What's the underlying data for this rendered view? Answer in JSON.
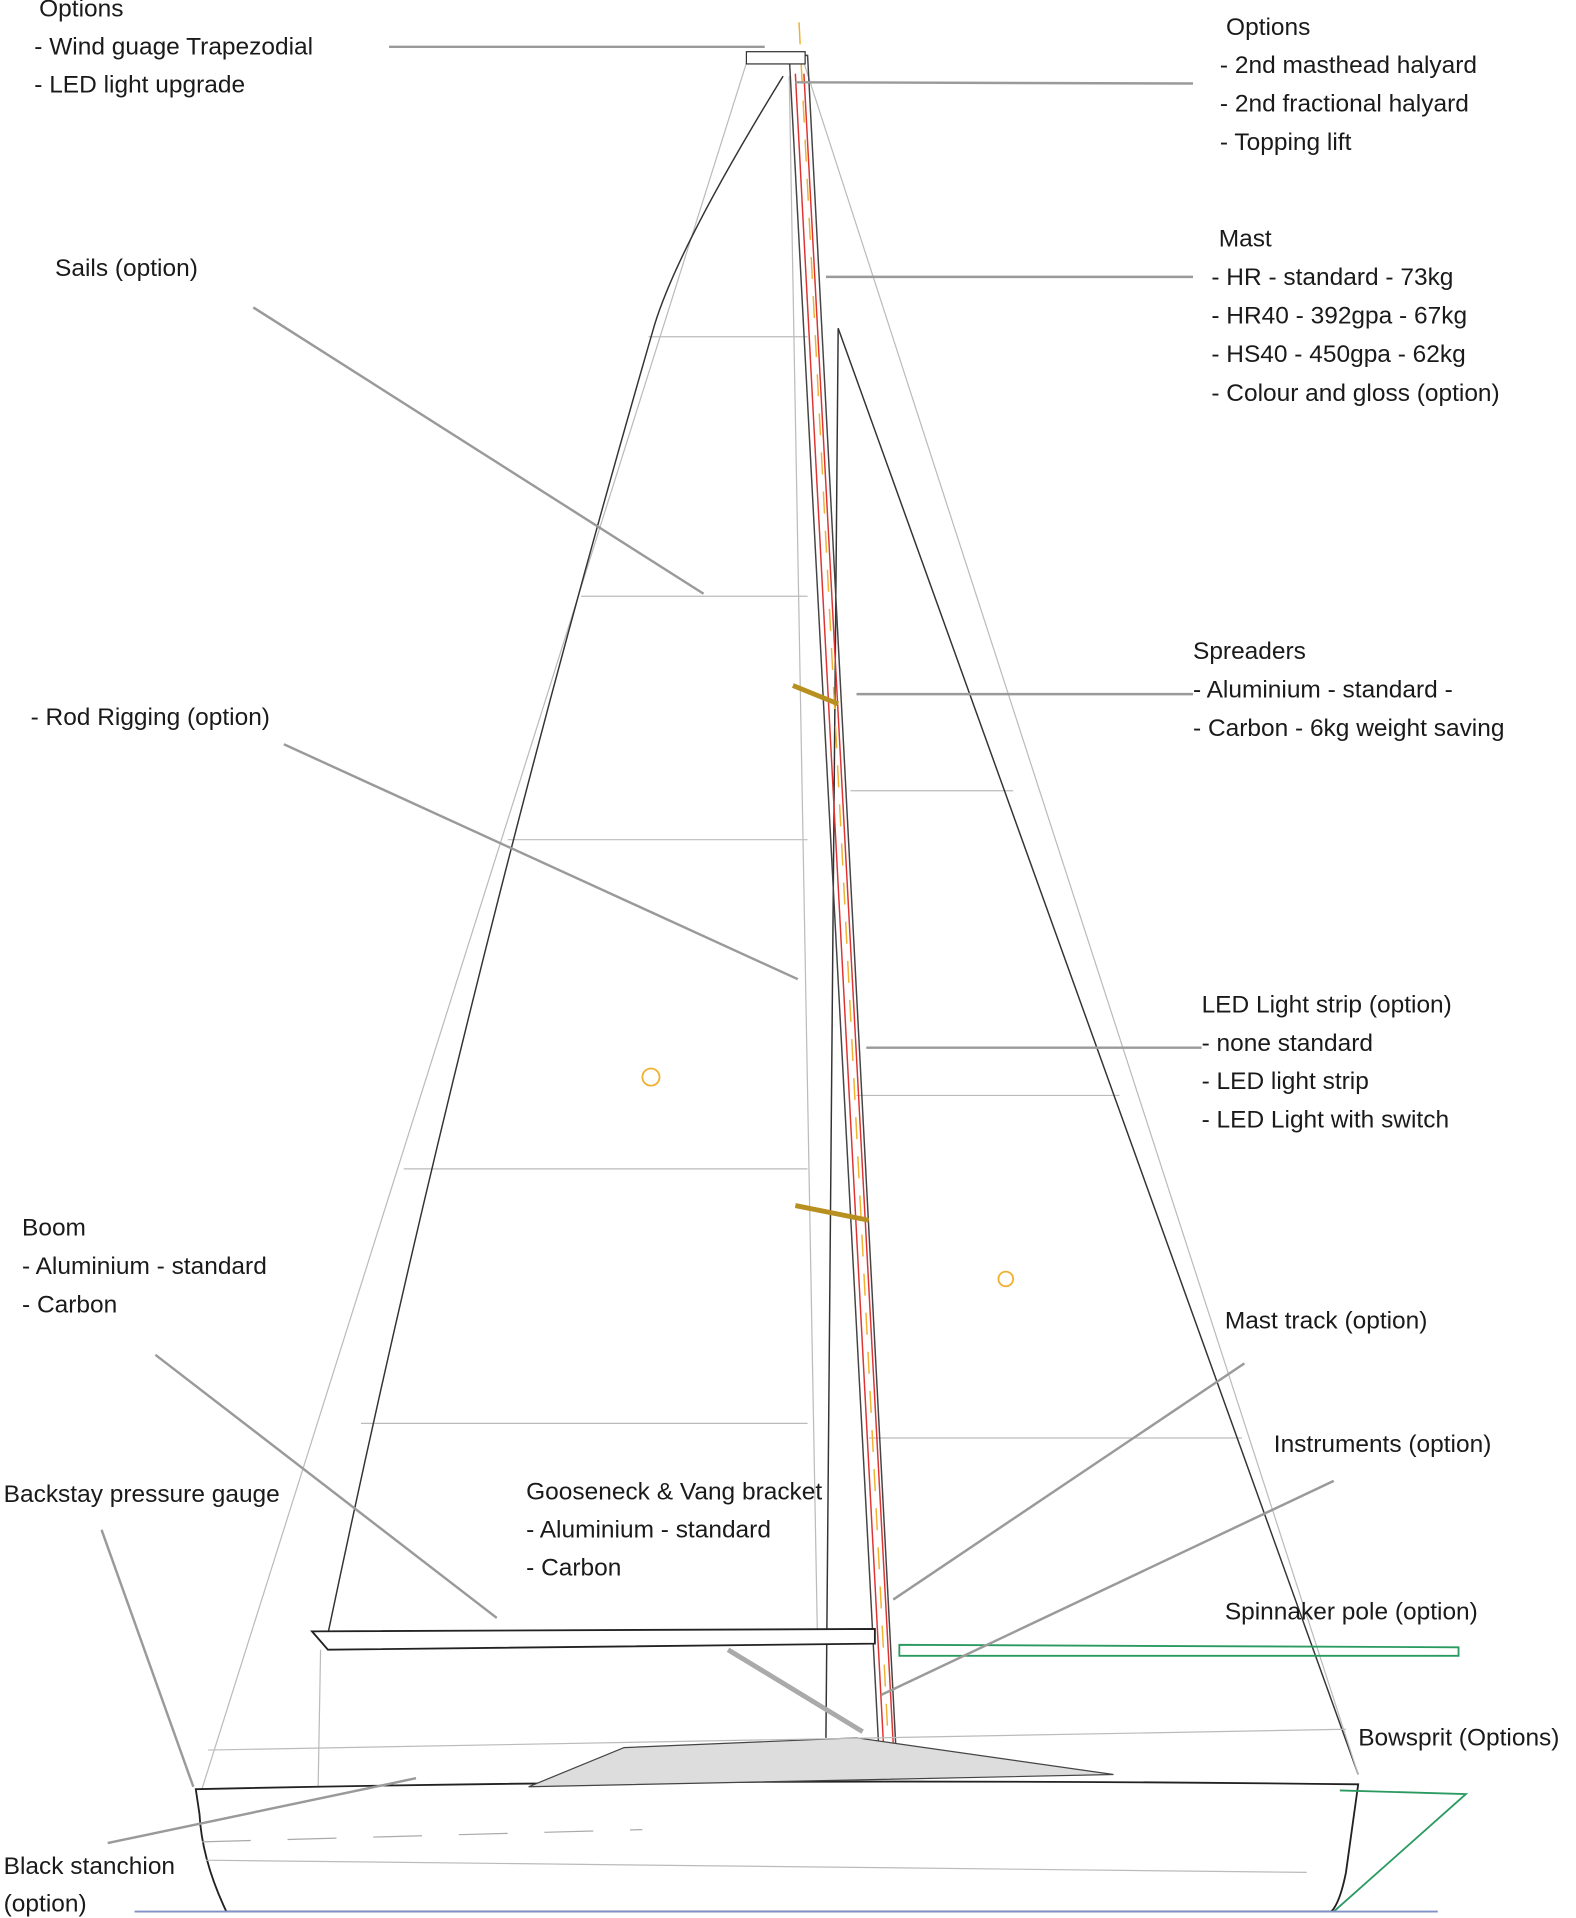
{
  "callouts": [
    {
      "lines": [
        "Options",
        "- Wind guage Trapezodial",
        "- LED light upgrade"
      ]
    },
    {
      "lines": [
        "Options",
        "- 2nd masthead halyard",
        "- 2nd fractional halyard",
        "- Topping lift"
      ]
    },
    {
      "lines": [
        "Mast",
        "- HR - standard - 73kg",
        "- HR40 - 392gpa - 67kg",
        "- HS40 - 450gpa - 62kg",
        "- Colour and gloss (option)"
      ]
    },
    {
      "lines": [
        "Sails (option)"
      ]
    },
    {
      "lines": [
        "Spreaders",
        "- Aluminium - standard -",
        "- Carbon - 6kg weight saving"
      ]
    },
    {
      "lines": [
        "- Rod Rigging (option)"
      ]
    },
    {
      "lines": [
        "LED Light strip (option)",
        "- none standard",
        "- LED light strip",
        "- LED Light with switch"
      ]
    },
    {
      "lines": [
        "Boom",
        "- Aluminium - standard",
        "- Carbon"
      ]
    },
    {
      "lines": [
        "Mast track (option)"
      ]
    },
    {
      "lines": [
        "Instruments (option)"
      ]
    },
    {
      "lines": [
        "Backstay pressure gauge"
      ]
    },
    {
      "lines": [
        "Gooseneck & Vang bracket",
        "- Aluminium - standard",
        "- Carbon"
      ]
    },
    {
      "lines": [
        "Spinnaker pole (option)"
      ]
    },
    {
      "lines": [
        "Bowsprit (Options)"
      ]
    },
    {
      "lines": [
        "Black stanchion",
        "(option)"
      ]
    }
  ]
}
